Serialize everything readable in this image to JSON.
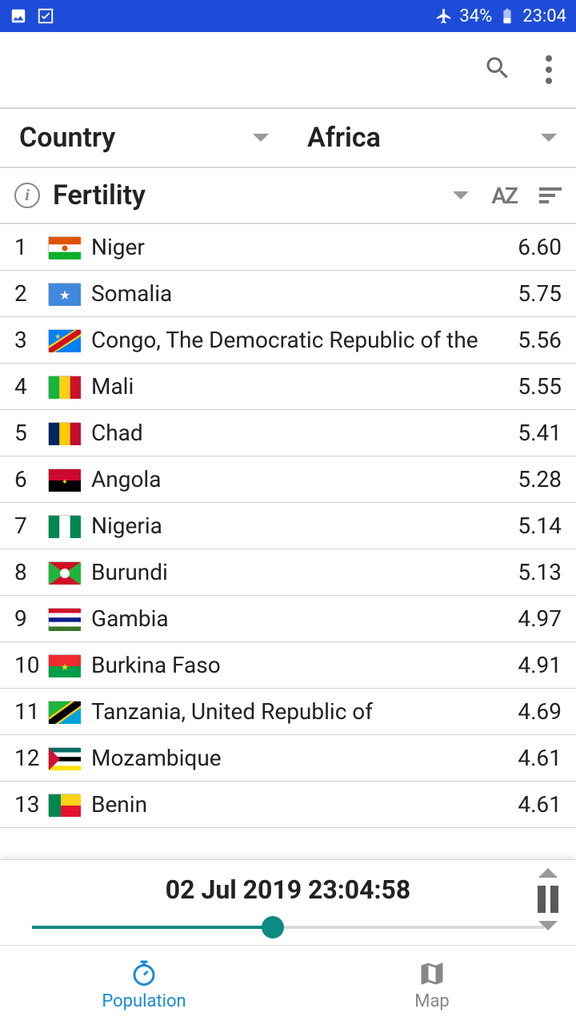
{
  "statusbar": {
    "battery_text": "34%",
    "time": "23:04"
  },
  "filters": {
    "category_label": "Country",
    "region_label": "Africa"
  },
  "metric": {
    "label": "Fertility",
    "sort_alpha_label": "AZ"
  },
  "countries": [
    {
      "rank": "1",
      "name": "Niger",
      "value": "6.60",
      "flag": {
        "h": [
          "#e05206",
          "#ffffff",
          "#0db02b"
        ],
        "center_dot": "#e05206"
      }
    },
    {
      "rank": "2",
      "name": "Somalia",
      "value": "5.75",
      "flag": {
        "bg": "#4189dd",
        "star": "#ffffff"
      }
    },
    {
      "rank": "3",
      "name": "Congo, The Democratic Republic of the",
      "value": "5.56",
      "flag": {
        "bg": "#007fff",
        "stripe": "#ce1021",
        "stripe_border": "#f7d618",
        "star": "#f7d618"
      }
    },
    {
      "rank": "4",
      "name": "Mali",
      "value": "5.55",
      "flag": {
        "v": [
          "#14b53a",
          "#fcd116",
          "#ce1126"
        ]
      }
    },
    {
      "rank": "5",
      "name": "Chad",
      "value": "5.41",
      "flag": {
        "v": [
          "#002664",
          "#fecb00",
          "#c60c30"
        ]
      }
    },
    {
      "rank": "6",
      "name": "Angola",
      "value": "5.28",
      "flag": {
        "h2": [
          "#cc092f",
          "#000000"
        ],
        "emblem": "#ffce00"
      }
    },
    {
      "rank": "7",
      "name": "Nigeria",
      "value": "5.14",
      "flag": {
        "v": [
          "#008751",
          "#ffffff",
          "#008751"
        ]
      }
    },
    {
      "rank": "8",
      "name": "Burundi",
      "value": "5.13",
      "flag": {
        "bg": "#ffffff",
        "top_bottom": "#ce1126",
        "left_right": "#1eb53a",
        "center": "#ffffff"
      }
    },
    {
      "rank": "9",
      "name": "Gambia",
      "value": "4.97",
      "flag": {
        "stripes": [
          "#ce1126",
          "#ffffff",
          "#0c1c8c",
          "#ffffff",
          "#3a7728"
        ]
      }
    },
    {
      "rank": "10",
      "name": "Burkina Faso",
      "value": "4.91",
      "flag": {
        "h2": [
          "#ef2b2d",
          "#009e49"
        ],
        "star": "#fcd116"
      }
    },
    {
      "rank": "11",
      "name": "Tanzania, United Republic of",
      "value": "4.69",
      "flag": {
        "tri_top": "#1eb53a",
        "tri_bot": "#00a3dd",
        "diag": "#000000",
        "diag_border": "#fcd116"
      }
    },
    {
      "rank": "12",
      "name": "Mozambique",
      "value": "4.61",
      "flag": {
        "stripes": [
          "#007168",
          "#ffffff",
          "#000000",
          "#ffffff",
          "#fce100"
        ],
        "triangle": "#d21034"
      }
    },
    {
      "rank": "13",
      "name": "Benin",
      "value": "4.61",
      "flag": {
        "left": "#008751",
        "top": "#fcd116",
        "bot": "#e8112d"
      }
    }
  ],
  "time_panel": {
    "timestamp": "02 Jul 2019 23:04:58",
    "slider_percent": 47,
    "accent": "#0d8a82"
  },
  "nav": {
    "population_label": "Population",
    "map_label": "Map",
    "active_color": "#1a8ad8",
    "inactive_color": "#888888"
  }
}
